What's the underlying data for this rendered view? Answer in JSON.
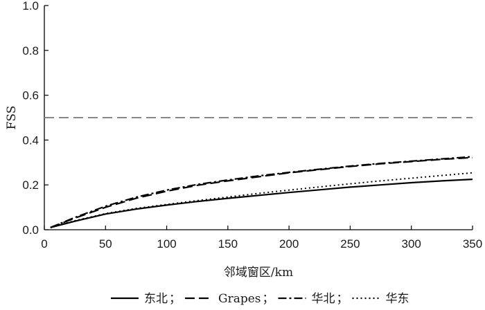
{
  "chart_data": {
    "type": "line",
    "xlabel": "邻域窗区/km",
    "ylabel": "FSS",
    "xlim": [
      0,
      350
    ],
    "ylim": [
      0,
      1.0
    ],
    "xticks": [
      "0",
      "50",
      "100",
      "150",
      "200",
      "250",
      "300",
      "350"
    ],
    "yticks": [
      "0.0",
      "0.2",
      "0.4",
      "0.6",
      "0.8",
      "1.0"
    ],
    "grid": false,
    "legend_position": "bottom",
    "reference_line": {
      "y": 0.5,
      "color": "#888888",
      "style": "dashed"
    },
    "x": [
      5,
      25,
      50,
      75,
      100,
      125,
      150,
      175,
      200,
      225,
      250,
      275,
      300,
      325,
      350
    ],
    "series": [
      {
        "name": "东北",
        "style": "solid",
        "color": "#000000",
        "values": [
          0.01,
          0.038,
          0.07,
          0.092,
          0.11,
          0.126,
          0.14,
          0.153,
          0.166,
          0.178,
          0.19,
          0.2,
          0.21,
          0.218,
          0.225
        ]
      },
      {
        "name": "Grapes",
        "style": "dashed",
        "color": "#000000",
        "values": [
          0.01,
          0.052,
          0.1,
          0.14,
          0.172,
          0.198,
          0.218,
          0.236,
          0.254,
          0.268,
          0.282,
          0.294,
          0.304,
          0.314,
          0.322
        ]
      },
      {
        "name": "华北",
        "style": "dashdot",
        "color": "#000000",
        "values": [
          0.01,
          0.055,
          0.105,
          0.145,
          0.177,
          0.202,
          0.222,
          0.24,
          0.256,
          0.27,
          0.284,
          0.296,
          0.306,
          0.316,
          0.326
        ]
      },
      {
        "name": "华东",
        "style": "dotted",
        "color": "#000000",
        "values": [
          0.01,
          0.04,
          0.072,
          0.095,
          0.113,
          0.13,
          0.146,
          0.162,
          0.177,
          0.191,
          0.205,
          0.218,
          0.23,
          0.242,
          0.254
        ]
      }
    ],
    "legend_separators": [
      "；",
      "；",
      "；"
    ]
  }
}
